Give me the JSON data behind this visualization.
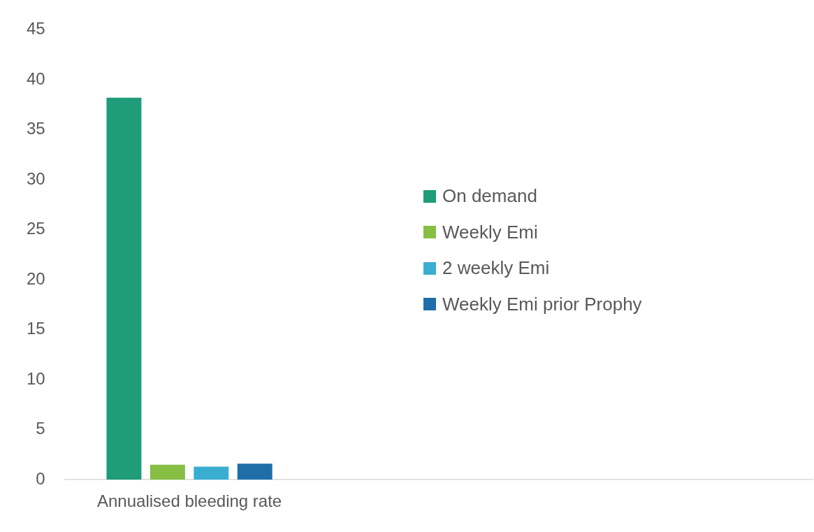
{
  "chart_data": {
    "type": "bar",
    "categories": [
      "Annualised bleeding rate",
      null,
      null
    ],
    "series": [
      {
        "name": "On demand",
        "color": "#1f9c7a",
        "values": [
          38.2,
          null,
          null
        ]
      },
      {
        "name": "Weekly Emi",
        "color": "#86bf43",
        "values": [
          1.5,
          null,
          null
        ]
      },
      {
        "name": "2 weekly Emi",
        "color": "#3aaed0",
        "values": [
          1.3,
          null,
          null
        ]
      },
      {
        "name": "Weekly Emi prior Prophy",
        "color": "#1f6ea9",
        "values": [
          1.6,
          null,
          null
        ]
      }
    ],
    "ylim": [
      0,
      45
    ],
    "yticks": [
      0,
      5,
      10,
      15,
      20,
      25,
      30,
      35,
      40,
      45
    ],
    "grid": false,
    "legend": "right"
  }
}
